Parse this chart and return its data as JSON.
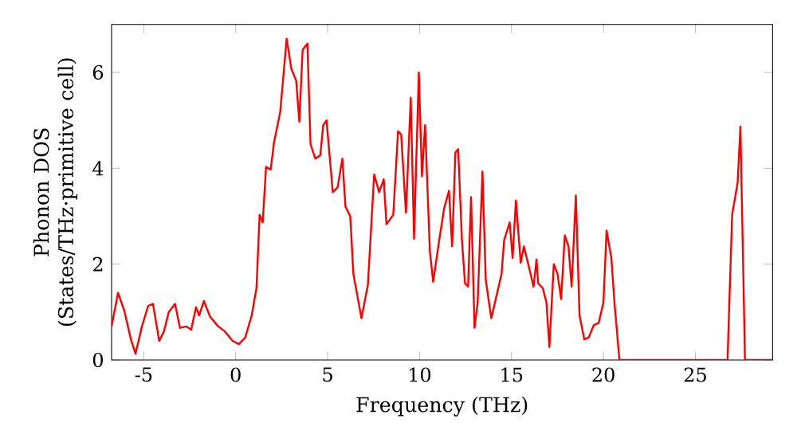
{
  "chart_data": {
    "type": "line",
    "xlabel": "Frequency (THz)",
    "ylabel": "Phonon DOS (States/THz·primitive cell)",
    "xlim": [
      -6.75,
      29.2
    ],
    "ylim": [
      0,
      7
    ],
    "xticks": [
      -5,
      0,
      5,
      10,
      15,
      20,
      25
    ],
    "yticks": [
      0,
      2,
      4,
      6
    ],
    "grid": false,
    "marker": "none",
    "line_style": "solid",
    "series": [
      {
        "color": "#ff0000",
        "x": [
          -6.75,
          -6.4,
          -6.06,
          -5.7,
          -5.45,
          -5.1,
          -4.76,
          -4.5,
          -4.16,
          -3.9,
          -3.64,
          -3.3,
          -3.03,
          -2.68,
          -2.42,
          -2.16,
          -1.99,
          -1.73,
          -1.39,
          -0.95,
          -0.6,
          -0.17,
          0.17,
          0.52,
          0.87,
          1.13,
          1.3,
          1.47,
          1.65,
          1.9,
          2.08,
          2.42,
          2.77,
          3.03,
          3.29,
          3.46,
          3.64,
          3.9,
          4.07,
          4.33,
          4.6,
          4.76,
          4.94,
          5.28,
          5.54,
          5.8,
          5.97,
          6.23,
          6.4,
          6.84,
          7.19,
          7.53,
          7.8,
          8.05,
          8.2,
          8.57,
          8.83,
          9.0,
          9.26,
          9.52,
          9.7,
          9.96,
          10.13,
          10.3,
          10.56,
          10.74,
          11.08,
          11.34,
          11.6,
          11.77,
          11.95,
          12.1,
          12.3,
          12.47,
          12.64,
          12.8,
          12.99,
          13.16,
          13.42,
          13.6,
          13.9,
          14.3,
          14.46,
          14.6,
          14.9,
          15.06,
          15.24,
          15.5,
          15.67,
          15.93,
          16.2,
          16.36,
          16.45,
          16.7,
          16.9,
          17.06,
          17.3,
          17.5,
          17.7,
          17.9,
          18.1,
          18.27,
          18.5,
          18.7,
          18.96,
          19.2,
          19.48,
          19.74,
          20.0,
          20.17,
          20.43,
          20.6,
          20.87,
          26.75,
          27.0,
          27.3,
          27.45,
          27.7,
          29.2
        ],
        "values": [
          0.7,
          1.4,
          1.03,
          0.43,
          0.13,
          0.7,
          1.13,
          1.17,
          0.4,
          0.6,
          1.0,
          1.17,
          0.67,
          0.7,
          0.63,
          1.1,
          0.93,
          1.23,
          0.9,
          0.7,
          0.6,
          0.4,
          0.33,
          0.47,
          0.93,
          1.5,
          3.03,
          2.87,
          4.03,
          3.97,
          4.53,
          5.17,
          6.7,
          6.07,
          5.83,
          4.97,
          6.47,
          6.6,
          4.5,
          4.2,
          4.27,
          4.9,
          5.0,
          3.5,
          3.6,
          4.2,
          3.2,
          3.0,
          1.8,
          0.87,
          1.57,
          3.87,
          3.5,
          3.77,
          2.83,
          3.03,
          4.77,
          4.7,
          3.07,
          5.47,
          2.53,
          6.0,
          3.83,
          4.9,
          2.27,
          1.63,
          2.53,
          3.17,
          3.53,
          2.37,
          4.33,
          4.4,
          2.53,
          1.6,
          1.53,
          3.4,
          0.67,
          1.2,
          3.93,
          1.67,
          0.87,
          1.53,
          1.8,
          2.5,
          2.87,
          2.13,
          3.33,
          2.03,
          2.37,
          1.97,
          1.53,
          2.1,
          1.6,
          1.5,
          1.2,
          0.27,
          2.0,
          1.8,
          1.27,
          2.6,
          2.37,
          1.53,
          3.43,
          0.93,
          0.43,
          0.47,
          0.73,
          0.77,
          1.2,
          2.7,
          2.13,
          1.2,
          0,
          0,
          3.03,
          3.7,
          4.87,
          0,
          0
        ]
      }
    ]
  }
}
